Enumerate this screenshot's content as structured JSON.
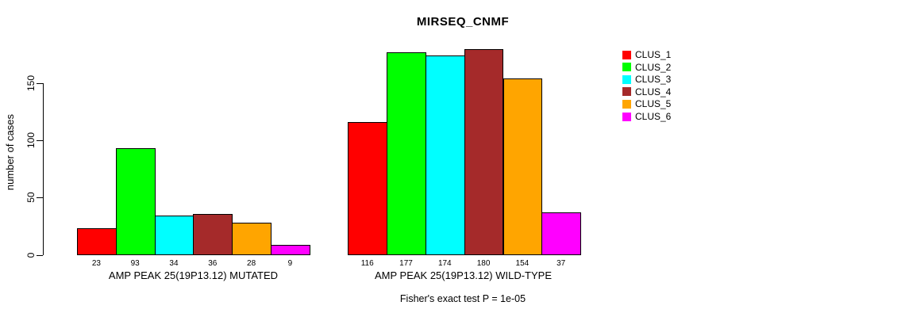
{
  "chart_data": {
    "type": "bar",
    "title": "MIRSEQ_CNMF",
    "ylabel": "number of cases",
    "xlabel": "",
    "subtitle": "Fisher's exact test P = 1e-05",
    "ylim": [
      0,
      186
    ],
    "yticks": [
      0,
      50,
      100,
      150
    ],
    "grid": false,
    "legend_position": "right",
    "bar_value_labels": true,
    "categories": [
      "AMP PEAK 25(19P13.12) MUTATED",
      "AMP PEAK 25(19P13.12) WILD-TYPE"
    ],
    "series": [
      {
        "name": "CLUS_1",
        "color": "#FF0000",
        "values": [
          23,
          116
        ]
      },
      {
        "name": "CLUS_2",
        "color": "#00FF00",
        "values": [
          93,
          177
        ]
      },
      {
        "name": "CLUS_3",
        "color": "#00FFFF",
        "values": [
          34,
          174
        ]
      },
      {
        "name": "CLUS_4",
        "color": "#A52A2A",
        "values": [
          36,
          180
        ]
      },
      {
        "name": "CLUS_5",
        "color": "#FFA500",
        "values": [
          28,
          154
        ]
      },
      {
        "name": "CLUS_6",
        "color": "#FF00FF",
        "values": [
          9,
          37
        ]
      }
    ]
  }
}
